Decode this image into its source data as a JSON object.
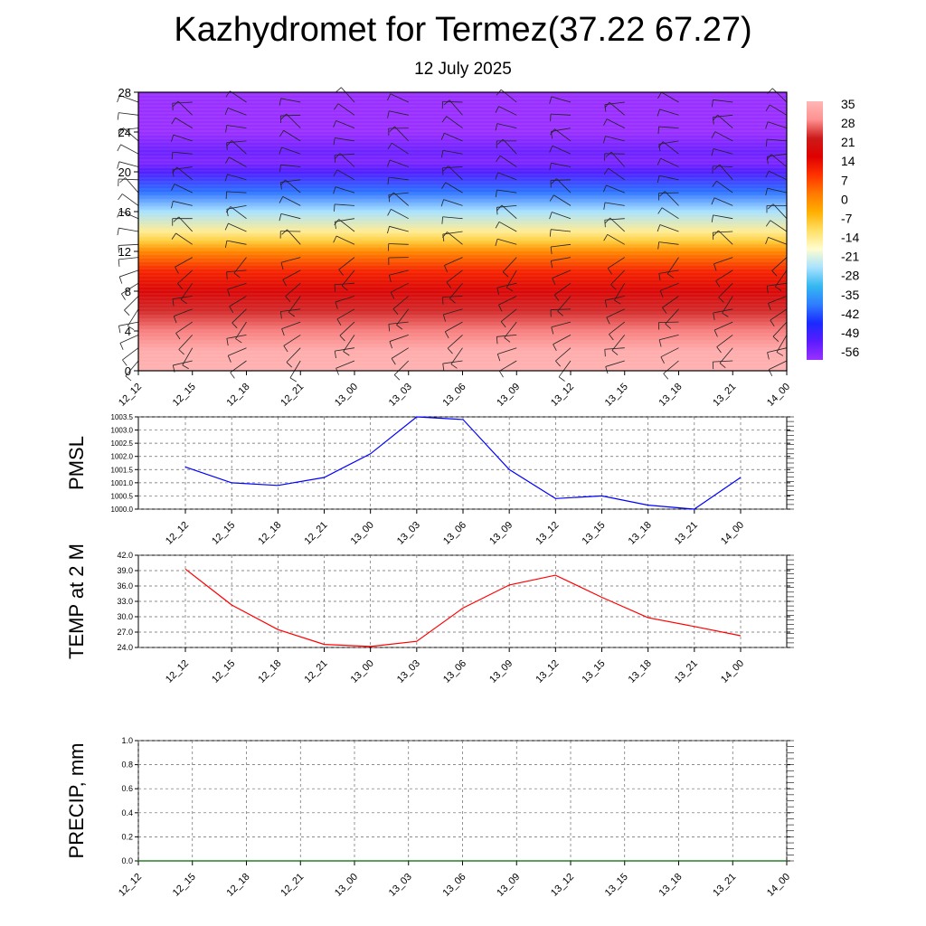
{
  "title": "Kazhydromet for Termez(37.22 67.27)",
  "subtitle": "12 July 2025",
  "time_labels": [
    "12_12",
    "12_15",
    "12_18",
    "12_21",
    "13_00",
    "13_03",
    "13_06",
    "13_09",
    "13_12",
    "13_15",
    "13_18",
    "13_21",
    "14_00"
  ],
  "chart_data": [
    {
      "type": "heatmap",
      "id": "cross-section",
      "x": [
        "12_12",
        "12_15",
        "12_18",
        "12_21",
        "13_00",
        "13_03",
        "13_06",
        "13_09",
        "13_12",
        "13_15",
        "13_18",
        "13_21",
        "14_00"
      ],
      "ylim": [
        0,
        28
      ],
      "yticks": [
        0,
        4,
        8,
        12,
        16,
        20,
        24,
        28
      ],
      "colorbar_labels": [
        35,
        28,
        21,
        14,
        7,
        0,
        -7,
        -14,
        -21,
        -28,
        -35,
        -42,
        -49,
        -56
      ],
      "colorbar_range": [
        -60,
        38
      ],
      "colorbar_colors": [
        "#9a30ff",
        "#5a1cff",
        "#1a2aff",
        "#2f7dff",
        "#35b8f0",
        "#a8e2ff",
        "#fffdd0",
        "#ffe066",
        "#ffb000",
        "#ff7a00",
        "#ff3300",
        "#e00000",
        "#cc1a1a",
        "#ff9090",
        "#ffb7b7"
      ],
      "temperature_profile": [
        [
          0,
          37
        ],
        [
          2,
          36
        ],
        [
          4,
          30
        ],
        [
          6,
          25
        ],
        [
          8,
          19
        ],
        [
          10,
          12
        ],
        [
          12,
          1
        ],
        [
          13,
          -8
        ],
        [
          14,
          -14
        ],
        [
          16,
          -25
        ],
        [
          18,
          -40
        ],
        [
          20,
          -52
        ],
        [
          21,
          -57
        ],
        [
          22,
          -55
        ],
        [
          24,
          -62
        ],
        [
          28,
          -62
        ]
      ],
      "wind_barbs": true,
      "grid": false
    },
    {
      "type": "line",
      "id": "pmsl",
      "ylabel": "PMSL",
      "x": [
        "12_12",
        "12_15",
        "12_18",
        "12_21",
        "13_00",
        "13_03",
        "13_06",
        "13_09",
        "13_12",
        "13_15",
        "13_18",
        "13_21",
        "14_00"
      ],
      "series": [
        {
          "values": [
            1001.6,
            1001.0,
            1000.9,
            1001.2,
            1002.1,
            1003.5,
            1003.4,
            1001.5,
            1000.4,
            1000.5,
            1000.15,
            1000.0,
            1001.2
          ],
          "color": "#0000ff"
        }
      ],
      "ylim": [
        1000.0,
        1003.5
      ],
      "yticks": [
        "1000.0",
        "1000.5",
        "1001.0",
        "1001.5",
        "1002.0",
        "1002.5",
        "1003.0",
        "1003.5"
      ],
      "grid": true
    },
    {
      "type": "line",
      "id": "temp2m",
      "ylabel": "TEMP at 2 M",
      "x": [
        "12_12",
        "12_15",
        "12_18",
        "12_21",
        "13_00",
        "13_03",
        "13_06",
        "13_09",
        "13_12",
        "13_15",
        "13_18",
        "13_21",
        "14_00"
      ],
      "series": [
        {
          "values": [
            39.3,
            32.3,
            27.5,
            24.6,
            24.2,
            25.2,
            31.7,
            36.2,
            38.1,
            33.8,
            29.8,
            28.1,
            26.3
          ],
          "color": "#ff0000"
        }
      ],
      "ylim": [
        24.0,
        42.0
      ],
      "yticks": [
        "24.0",
        "27.0",
        "30.0",
        "33.0",
        "36.0",
        "39.0",
        "42.0"
      ],
      "grid": true
    },
    {
      "type": "line",
      "id": "precip",
      "ylabel": "PRECIP, mm",
      "x": [
        "12_12",
        "12_15",
        "12_18",
        "12_21",
        "13_00",
        "13_03",
        "13_06",
        "13_09",
        "13_12",
        "13_15",
        "13_18",
        "13_21",
        "14_00"
      ],
      "series": [
        {
          "values": [
            0,
            0,
            0,
            0,
            0,
            0,
            0,
            0,
            0,
            0,
            0,
            0,
            0
          ],
          "color": "#006400"
        }
      ],
      "ylim": [
        0.0,
        1.0
      ],
      "yticks": [
        "0.0",
        "0.2",
        "0.4",
        "0.6",
        "0.8",
        "1.0"
      ],
      "grid": true
    }
  ]
}
